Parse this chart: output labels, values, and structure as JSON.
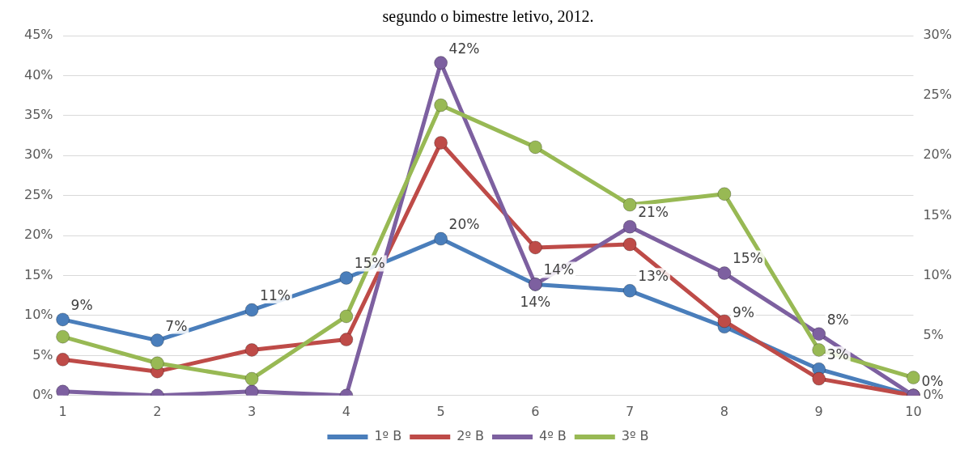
{
  "chart_data": {
    "type": "line",
    "title": "segundo o bimestre letivo, 2012.",
    "categories": [
      "1",
      "2",
      "3",
      "4",
      "5",
      "6",
      "7",
      "8",
      "9",
      "10"
    ],
    "series": [
      {
        "name": "1º B",
        "color": "#4a7ebb",
        "values": [
          9.5,
          6.9,
          10.7,
          14.7,
          19.6,
          13.9,
          13.1,
          8.6,
          3.3,
          0
        ],
        "value_labels": [
          "9%",
          "7%",
          "11%",
          "15%",
          "20%",
          "14%",
          "13%",
          "9%",
          "3%",
          "0%"
        ]
      },
      {
        "name": "2º B",
        "color": "#be4b48",
        "values": [
          4.5,
          3.0,
          5.7,
          7.0,
          31.6,
          18.5,
          18.9,
          9.3,
          2.1,
          0
        ]
      },
      {
        "name": "4º B",
        "color": "#7d60a0",
        "values": [
          0.5,
          0,
          0.5,
          0,
          41.6,
          13.9,
          21.1,
          15.3,
          7.7,
          0
        ],
        "value_labels": [
          null,
          null,
          null,
          null,
          "42%",
          "14%",
          "21%",
          "15%",
          "8%",
          null
        ]
      },
      {
        "name": "3º B",
        "color": "#98b954",
        "axis": "y2",
        "values": [
          4.9,
          2.7,
          1.4,
          6.6,
          24.2,
          20.7,
          15.9,
          16.8,
          3.8,
          1.5
        ]
      }
    ],
    "ylim": [
      0,
      45
    ],
    "yticks": [
      {
        "value": 0,
        "label": "0%"
      },
      {
        "value": 5,
        "label": "5%"
      },
      {
        "value": 10,
        "label": "10%"
      },
      {
        "value": 15,
        "label": "15%"
      },
      {
        "value": 20,
        "label": "20%"
      },
      {
        "value": 25,
        "label": "25%"
      },
      {
        "value": 30,
        "label": "30%"
      },
      {
        "value": 35,
        "label": "35%"
      },
      {
        "value": 40,
        "label": "40%"
      },
      {
        "value": 45,
        "label": "45%"
      }
    ],
    "y2lim": [
      0,
      30
    ],
    "y2ticks": [
      {
        "value": 0,
        "label": "0%"
      },
      {
        "value": 5,
        "label": "5%"
      },
      {
        "value": 10,
        "label": "10%"
      },
      {
        "value": 15,
        "label": "15%"
      },
      {
        "value": 20,
        "label": "20%"
      },
      {
        "value": 25,
        "label": "25%"
      },
      {
        "value": 30,
        "label": "30%"
      }
    ],
    "grid": "y",
    "legend": "bottom",
    "marker": "circle",
    "line_style": "solid"
  }
}
